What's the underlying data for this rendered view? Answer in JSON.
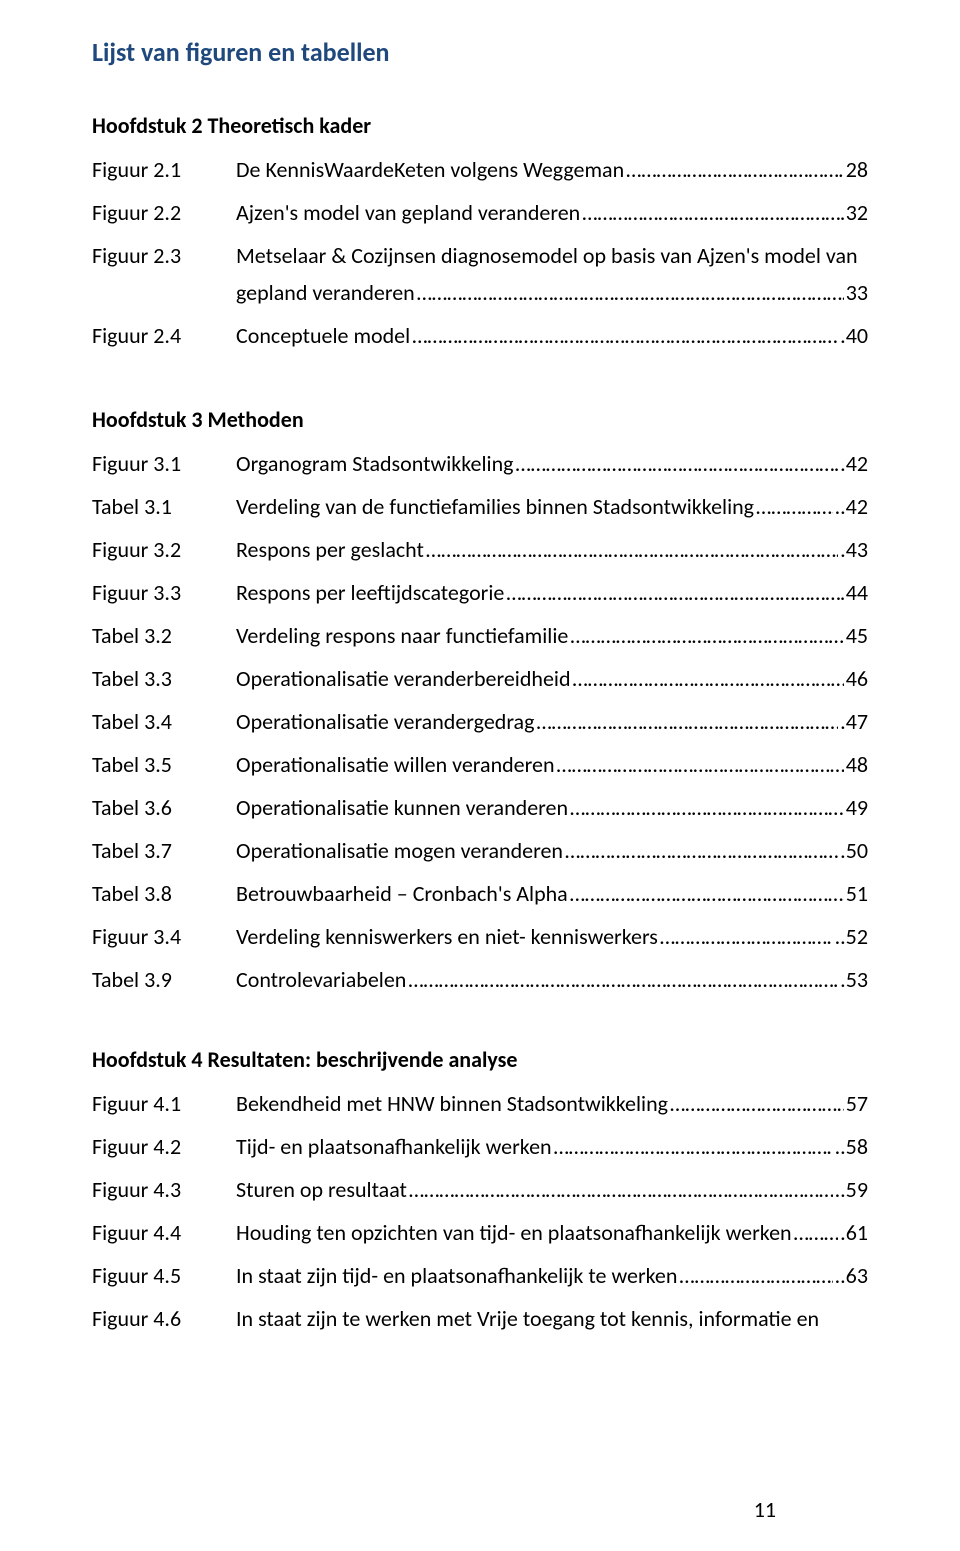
{
  "title": "Lijst van figuren en tabellen",
  "sections": [
    {
      "heading": "Hoofdstuk 2 Theoretisch kader",
      "rows": [
        {
          "label": "Figuur 2.1",
          "desc": "De KennisWaardeKeten volgens Weggeman",
          "page": "28"
        },
        {
          "label": "Figuur 2.2",
          "desc": "Ajzen's model van gepland veranderen",
          "page": "32"
        },
        {
          "label": "Figuur 2.3",
          "desc": "Metselaar & Cozijnsen diagnosemodel op basis van Ajzen's model van",
          "cont": "gepland veranderen",
          "page": "33"
        },
        {
          "label": "Figuur 2.4",
          "desc": "Conceptuele model",
          "page": ".40"
        }
      ]
    },
    {
      "heading": "Hoofdstuk 3 Methoden",
      "rows": [
        {
          "label": "Figuur 3.1",
          "desc": "Organogram Stadsontwikkeling",
          "page": ".42"
        },
        {
          "label": "Tabel 3.1",
          "desc": "Verdeling van de functiefamilies binnen Stadsontwikkeling",
          "page": "..42"
        },
        {
          "label": " Figuur 3.2",
          "desc": " Respons per geslacht",
          "page": ".43"
        },
        {
          "label": "Figuur 3.3",
          "desc": "Respons per leeftijdscategorie",
          "page": "44"
        },
        {
          "label": "Tabel 3.2",
          "desc": "Verdeling respons naar functiefamilie",
          "page": "45"
        },
        {
          "label": "Tabel 3.3",
          "desc": "Operationalisatie veranderbereidheid",
          "page": "46"
        },
        {
          "label": "Tabel 3.4",
          "desc": "Operationalisatie verandergedrag",
          "page": ".47"
        },
        {
          "label": "Tabel 3.5",
          "desc": "Operationalisatie willen veranderen",
          "page": "48"
        },
        {
          "label": "Tabel 3.6",
          "desc": "Operationalisatie kunnen veranderen",
          "page": "49"
        },
        {
          "label": "Tabel 3.7",
          "desc": "Operationalisatie mogen veranderen",
          "page": ".50"
        },
        {
          "label": "Tabel 3.8",
          "desc": "Betrouwbaarheid – Cronbach's Alpha",
          "page": "51"
        },
        {
          "label": "Figuur 3.4",
          "desc": "Verdeling kenniswerkers en niet- kenniswerkers",
          "page": "..52"
        },
        {
          "label": "Tabel 3.9",
          "desc": "Controlevariabelen",
          "page": ".53"
        }
      ]
    },
    {
      "heading": "Hoofdstuk 4 Resultaten: beschrijvende analyse",
      "rows": [
        {
          "label": "Figuur 4.1",
          "desc": "Bekendheid met HNW binnen Stadsontwikkeling",
          "page": "57"
        },
        {
          "label": "Figuur 4.2",
          "desc": "Tijd- en plaatsonafhankelijk werken",
          "page": "..58"
        },
        {
          "label": "Figuur 4.3",
          "desc": "Sturen op resultaat",
          "page": "..59"
        },
        {
          "label": "Figuur 4.4",
          "desc": "Houding ten opzichten van tijd- en plaatsonafhankelijk werken",
          "page": ".61"
        },
        {
          "label": "Figuur 4.5",
          "desc": "In staat zijn tijd- en plaatsonafhankelijk te werken",
          "page": "..63"
        },
        {
          "label": "Figuur 4.6",
          "desc": "In staat zijn te werken met Vrije toegang tot kennis, informatie en"
        }
      ]
    }
  ],
  "pageNumber": "11",
  "colors": {
    "title": "#1f497d",
    "text": "#000000",
    "background": "#ffffff"
  },
  "typography": {
    "title_fontsize": 26,
    "heading_fontsize": 22,
    "body_fontsize": 22,
    "font_family": "Calibri"
  }
}
